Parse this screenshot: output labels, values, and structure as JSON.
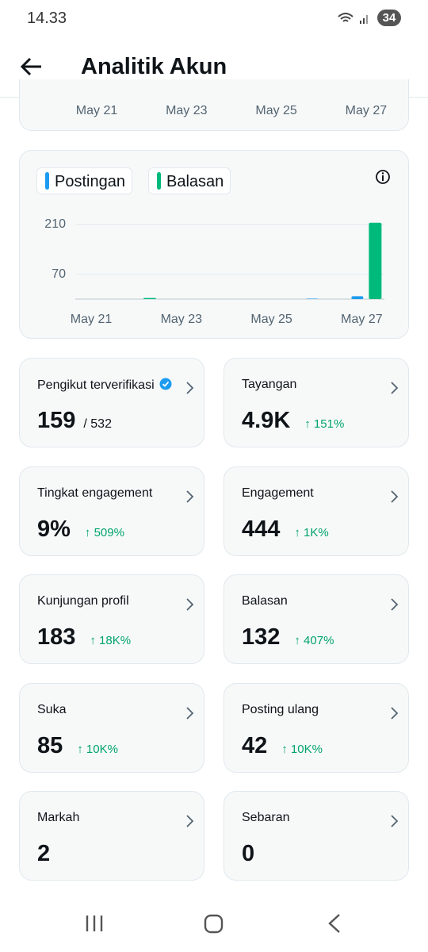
{
  "status_bar": {
    "time": "14.33",
    "battery": "34"
  },
  "header": {
    "title": "Analitik Akun"
  },
  "previous_chart": {
    "x_labels": [
      "May 21",
      "May 23",
      "May 25",
      "May 27"
    ]
  },
  "chart_data": {
    "type": "bar",
    "categories": [
      "May 21",
      null,
      "May 23",
      null,
      "May 25",
      null,
      "May 27"
    ],
    "series": [
      {
        "name": "Postingan",
        "color": "#1d9bf0",
        "values": [
          0,
          0,
          0,
          0,
          0,
          1,
          8
        ]
      },
      {
        "name": "Balasan",
        "color": "#00ba7c",
        "values": [
          0,
          3,
          0,
          0,
          0,
          0,
          215
        ]
      }
    ],
    "ylim": [
      0,
      220
    ],
    "yticks": [
      70,
      210
    ],
    "grid": true
  },
  "metrics": [
    {
      "label": "Pengikut terverifikasi",
      "value": "159",
      "total": "/ 532"
    },
    {
      "label": "Tayangan",
      "value": "4.9K",
      "change": "↑ 151%"
    },
    {
      "label": "Tingkat engagement",
      "value": "9%",
      "change": "↑ 509%"
    },
    {
      "label": "Engagement",
      "value": "444",
      "change": "↑ 1K%"
    },
    {
      "label": "Kunjungan profil",
      "value": "183",
      "change": "↑ 18K%"
    },
    {
      "label": "Balasan",
      "value": "132",
      "change": "↑ 407%"
    },
    {
      "label": "Suka",
      "value": "85",
      "change": "↑ 10K%"
    },
    {
      "label": "Posting ulang",
      "value": "42",
      "change": "↑ 10K%"
    },
    {
      "label": "Markah",
      "value": "2"
    },
    {
      "label": "Sebaran",
      "value": "0"
    }
  ]
}
